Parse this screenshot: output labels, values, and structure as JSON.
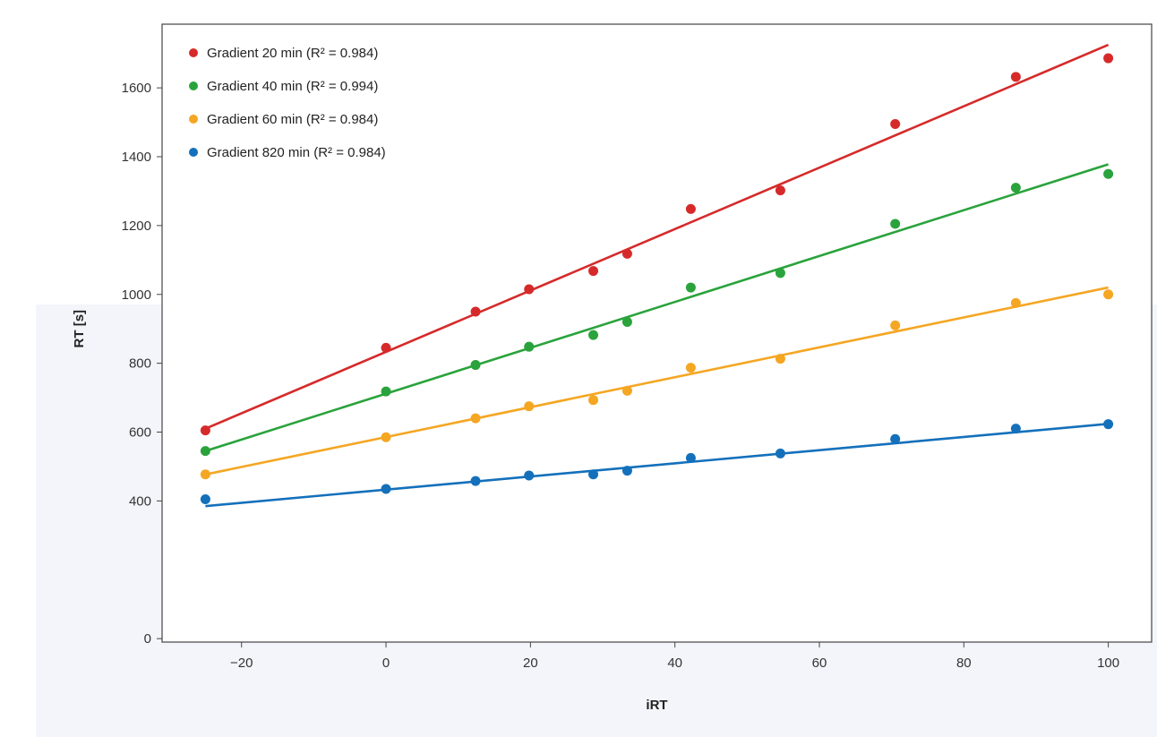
{
  "chart_data": {
    "type": "scatter",
    "title": "",
    "xlabel": "iRT",
    "ylabel": "RT [s]",
    "xlim": [
      -31,
      106
    ],
    "ylim": [
      -10,
      1785
    ],
    "grid": false,
    "legend_position": "top-left",
    "x_ticks": [
      -20,
      0,
      20,
      40,
      60,
      80,
      100
    ],
    "x_tick_labels": [
      "−20",
      "0",
      "20",
      "40",
      "60",
      "80",
      "100"
    ],
    "y_ticks": [
      0,
      400,
      600,
      800,
      1000,
      1200,
      1400,
      1600
    ],
    "y_tick_labels": [
      "0",
      "400",
      "600",
      "800",
      "1000",
      "1200",
      "1400",
      "1600"
    ],
    "x": [
      -25,
      0,
      12.4,
      19.8,
      28.7,
      33.4,
      42.2,
      54.6,
      70.5,
      87.2,
      100
    ],
    "series": [
      {
        "name": "Gradient 20 min (R² = 0.984)",
        "color": "#d62a2a",
        "values": [
          605,
          845,
          950,
          1015,
          1068,
          1118,
          1248,
          1302,
          1495,
          1632,
          1686
        ],
        "fit": [
          [
            -25,
            610
          ],
          [
            100,
            1725
          ]
        ]
      },
      {
        "name": "Gradient 40 min (R² = 0.994)",
        "color": "#2aa33c",
        "values": [
          545,
          718,
          795,
          848,
          882,
          920,
          1020,
          1062,
          1205,
          1310,
          1350
        ],
        "fit": [
          [
            -25,
            545
          ],
          [
            100,
            1378
          ]
        ]
      },
      {
        "name": "Gradient 60 min (R² = 0.984)",
        "color": "#f5a623",
        "values": [
          477,
          585,
          640,
          675,
          693,
          720,
          787,
          813,
          910,
          975,
          1000
        ],
        "fit": [
          [
            -25,
            477
          ],
          [
            100,
            1020
          ]
        ]
      },
      {
        "name": "Gradient 820 min (R² = 0.984)",
        "color": "#1470bb",
        "values": [
          405,
          435,
          458,
          474,
          477,
          488,
          525,
          538,
          580,
          610,
          623
        ],
        "fit": [
          [
            -25,
            385
          ],
          [
            100,
            624
          ]
        ]
      }
    ]
  }
}
